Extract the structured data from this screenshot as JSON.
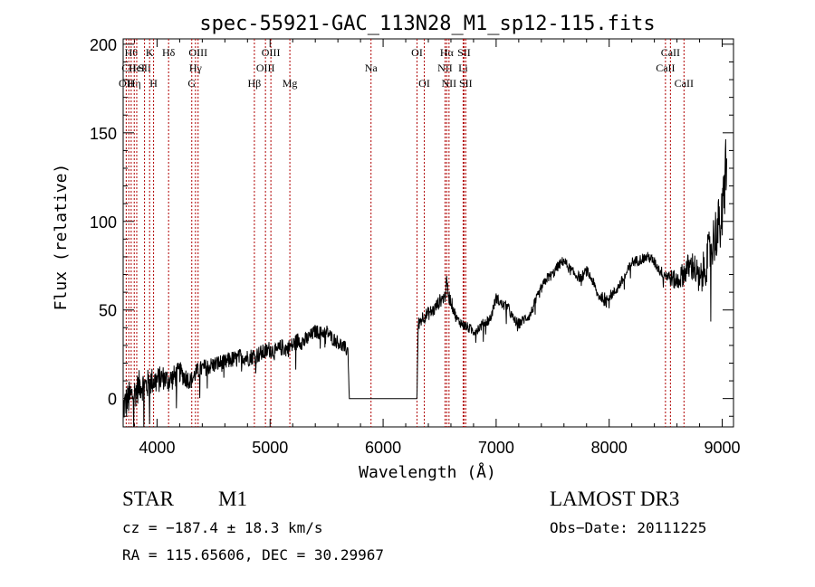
{
  "chart_data": {
    "type": "line",
    "title": "spec-55921-GAC_113N28_M1_sp12-115.fits",
    "xlabel": "Wavelength (Å)",
    "ylabel": "Flux (relative)",
    "xlim": [
      3700,
      9100
    ],
    "ylim": [
      -16,
      203
    ],
    "xticks": [
      4000,
      5000,
      6000,
      7000,
      8000,
      9000
    ],
    "yticks": [
      0,
      50,
      100,
      150,
      200
    ],
    "xtick_labels": [
      "4000",
      "5000",
      "6000",
      "7000",
      "8000",
      "9000"
    ],
    "ytick_labels": [
      "0",
      "50",
      "100",
      "150",
      "200"
    ],
    "series": [
      {
        "name": "flux",
        "x": [
          3700,
          3750,
          3800,
          3850,
          3900,
          3950,
          4000,
          4050,
          4100,
          4150,
          4200,
          4250,
          4300,
          4350,
          4400,
          4450,
          4500,
          4550,
          4600,
          4650,
          4700,
          4750,
          4800,
          4850,
          4900,
          4950,
          5000,
          5050,
          5100,
          5150,
          5200,
          5250,
          5300,
          5350,
          5400,
          5450,
          5500,
          5550,
          5600,
          5650,
          5690,
          5700,
          6000,
          6300,
          6310,
          6350,
          6400,
          6450,
          6500,
          6550,
          6563,
          6580,
          6600,
          6650,
          6700,
          6750,
          6800,
          6850,
          6900,
          6950,
          7000,
          7050,
          7100,
          7150,
          7200,
          7250,
          7300,
          7350,
          7400,
          7450,
          7500,
          7550,
          7600,
          7650,
          7700,
          7750,
          7800,
          7850,
          7900,
          7950,
          8000,
          8050,
          8100,
          8150,
          8200,
          8250,
          8300,
          8350,
          8400,
          8450,
          8500,
          8550,
          8600,
          8650,
          8700,
          8750,
          8800,
          8850,
          8900,
          8950,
          9000,
          9020,
          9040
        ],
        "values": [
          -5,
          0,
          3,
          8,
          7,
          10,
          10,
          12,
          10,
          12,
          15,
          12,
          10,
          15,
          17,
          18,
          19,
          20,
          20,
          22,
          22,
          24,
          23,
          24,
          25,
          26,
          28,
          26,
          29,
          28,
          30,
          33,
          32,
          35,
          38,
          37,
          38,
          34,
          32,
          29,
          27,
          0,
          0,
          0,
          42,
          46,
          48,
          50,
          55,
          58,
          66,
          58,
          55,
          45,
          42,
          40,
          38,
          40,
          43,
          45,
          57,
          53,
          52,
          45,
          42,
          45,
          47,
          55,
          62,
          68,
          70,
          75,
          78,
          73,
          70,
          68,
          72,
          67,
          58,
          57,
          58,
          60,
          65,
          70,
          77,
          78,
          79,
          80,
          77,
          72,
          70,
          68,
          66,
          70,
          74,
          75,
          65,
          75,
          85,
          95,
          100,
          120,
          140
        ],
        "noise_amplitude": [
          10,
          10,
          9,
          9,
          9,
          8,
          8,
          7,
          7,
          7,
          6,
          6,
          5,
          5,
          5,
          5,
          5,
          5,
          5,
          5,
          5,
          5,
          5,
          5,
          5,
          5,
          5,
          5,
          5,
          5,
          5,
          5,
          5,
          4,
          4,
          4,
          4,
          4,
          4,
          4,
          4,
          0,
          0,
          0,
          4,
          4,
          4,
          4,
          4,
          4,
          4,
          4,
          4,
          3,
          3,
          3,
          3,
          3,
          3,
          3,
          3,
          3,
          3,
          3,
          3,
          3,
          3,
          3,
          3,
          3,
          3,
          3,
          3,
          3,
          3,
          3,
          3,
          3,
          3,
          3,
          3,
          3,
          3,
          3,
          3,
          3,
          3,
          3,
          3,
          3,
          4,
          5,
          6,
          7,
          8,
          9,
          10,
          12,
          14,
          16,
          18,
          20,
          22
        ]
      }
    ],
    "lines": [
      {
        "wavelength": 3727,
        "label": "OII",
        "row": 2
      },
      {
        "wavelength": 3750,
        "label": "CII",
        "row": 1
      },
      {
        "wavelength": 3771,
        "label": "Hθ",
        "row": 0
      },
      {
        "wavelength": 3798,
        "label": "Hη",
        "row": 2
      },
      {
        "wavelength": 3820,
        "label": "HeI",
        "row": 1
      },
      {
        "wavelength": 3889,
        "label": "SII",
        "row": 1
      },
      {
        "wavelength": 3934,
        "label": "K",
        "row": 0
      },
      {
        "wavelength": 3969,
        "label": "H",
        "row": 2
      },
      {
        "wavelength": 4102,
        "label": "Hδ",
        "row": 0
      },
      {
        "wavelength": 4307,
        "label": "G",
        "row": 2
      },
      {
        "wavelength": 4340,
        "label": "Hγ",
        "row": 1
      },
      {
        "wavelength": 4363,
        "label": "OIII",
        "row": 0
      },
      {
        "wavelength": 4861,
        "label": "Hβ",
        "row": 2
      },
      {
        "wavelength": 4959,
        "label": "OIII",
        "row": 1
      },
      {
        "wavelength": 5007,
        "label": "OIII",
        "row": 0
      },
      {
        "wavelength": 5175,
        "label": "Mg",
        "row": 2
      },
      {
        "wavelength": 5893,
        "label": "Na",
        "row": 1
      },
      {
        "wavelength": 6300,
        "label": "OI",
        "row": 0
      },
      {
        "wavelength": 6364,
        "label": "OI",
        "row": 2
      },
      {
        "wavelength": 6548,
        "label": "NII",
        "row": 1
      },
      {
        "wavelength": 6563,
        "label": "Hα",
        "row": 0
      },
      {
        "wavelength": 6583,
        "label": "NII",
        "row": 2
      },
      {
        "wavelength": 6708,
        "label": "Li",
        "row": 1
      },
      {
        "wavelength": 6716,
        "label": "SII",
        "row": 0
      },
      {
        "wavelength": 6731,
        "label": "SII",
        "row": 2
      },
      {
        "wavelength": 8498,
        "label": "CaII",
        "row": 1
      },
      {
        "wavelength": 8542,
        "label": "CaII",
        "row": 0
      },
      {
        "wavelength": 8662,
        "label": "CaII",
        "row": 2
      }
    ]
  },
  "info": {
    "object_class": "STAR",
    "subclass": "M1",
    "survey": "LAMOST DR3",
    "cz": "cz = −187.4 ± 18.3 km/s",
    "obs_date": "Obs−Date: 20111225",
    "coords": "RA = 115.65606, DEC =  30.29967"
  }
}
